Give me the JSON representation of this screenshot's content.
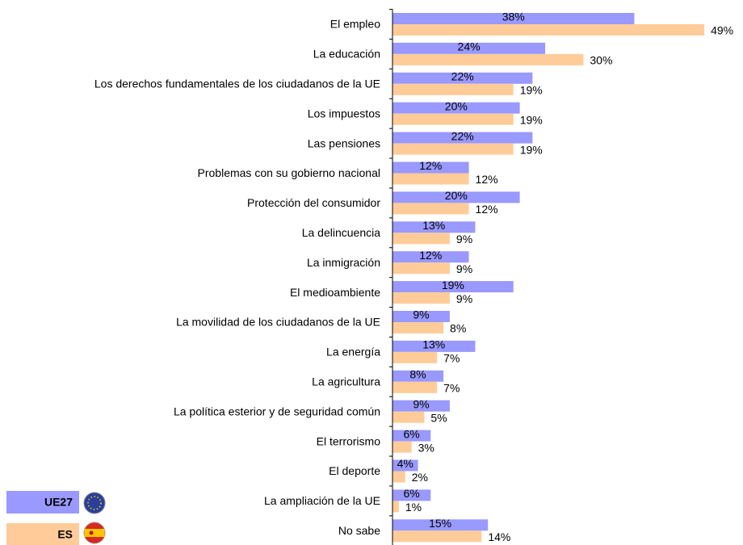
{
  "chart_data": {
    "type": "bar",
    "orientation": "horizontal",
    "categories": [
      "El empleo",
      "La educación",
      "Los derechos fundamentales de los ciudadanos de la UE",
      "Los impuestos",
      "Las pensiones",
      "Problemas con su gobierno nacional",
      "Protección del consumidor",
      "La delincuencia",
      "La inmigración",
      "El medioambiente",
      "La movilidad de los ciudadanos de la UE",
      "La energía",
      "La agricultura",
      "La política esterior y de seguridad común",
      "El terrorismo",
      "El deporte",
      "La ampliación de la UE",
      "No sabe"
    ],
    "series": [
      {
        "name": "UE27",
        "color": "#9999ff",
        "values": [
          38,
          24,
          22,
          20,
          22,
          12,
          20,
          13,
          12,
          19,
          9,
          13,
          8,
          9,
          6,
          4,
          6,
          15
        ],
        "value_labels": [
          "38%",
          "24%",
          "22%",
          "20%",
          "22%",
          "12%",
          "20%",
          "13%",
          "12%",
          "19%",
          "9%",
          "13%",
          "8%",
          "9%",
          "6%",
          "4%",
          "6%",
          "15%"
        ]
      },
      {
        "name": "ES",
        "color": "#ffcc99",
        "values": [
          49,
          30,
          19,
          19,
          19,
          12,
          12,
          9,
          9,
          9,
          8,
          7,
          7,
          5,
          3,
          2,
          1,
          14
        ],
        "value_labels": [
          "49%",
          "30%",
          "19%",
          "19%",
          "19%",
          "12%",
          "12%",
          "9%",
          "9%",
          "9%",
          "8%",
          "7%",
          "7%",
          "5%",
          "3%",
          "2%",
          "1%",
          "14%"
        ]
      }
    ],
    "xlim": [
      0,
      50
    ],
    "legend": "bottom-left"
  }
}
